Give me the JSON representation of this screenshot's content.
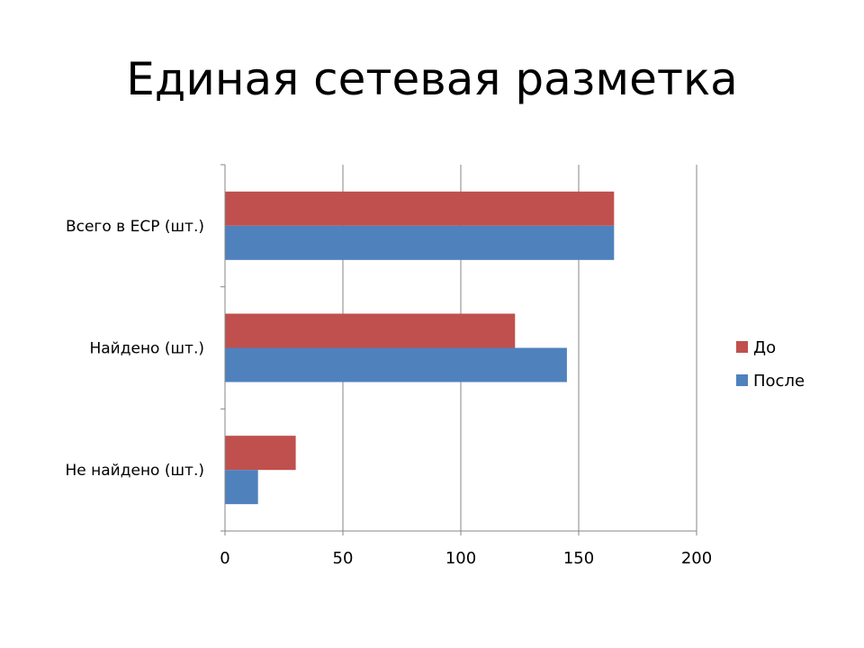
{
  "title": "Единая сетевая разметка",
  "chart_data": {
    "type": "bar",
    "orientation": "horizontal",
    "categories": [
      "Всего в ЕСР (шт.)",
      "Найдено (шт.)",
      "Не найдено (шт.)"
    ],
    "series": [
      {
        "name": "До",
        "values": [
          165,
          123,
          30
        ],
        "color": "#C0504D"
      },
      {
        "name": "После",
        "values": [
          165,
          145,
          14
        ],
        "color": "#4F81BD"
      }
    ],
    "xlim": [
      0,
      200
    ],
    "ticks": [
      "0",
      "50",
      "100",
      "150",
      "200"
    ],
    "tick_values": [
      0,
      50,
      100,
      150,
      200
    ],
    "grid": true,
    "legend": "right",
    "gridline_color": "#868686"
  }
}
